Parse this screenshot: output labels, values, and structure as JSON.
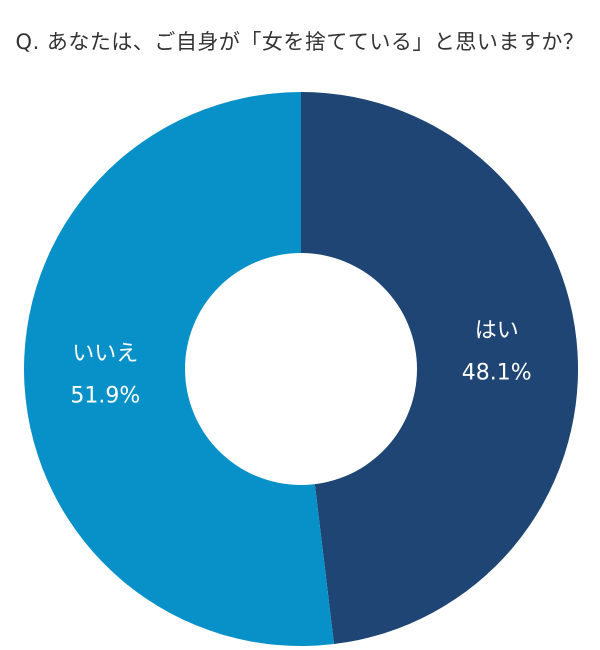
{
  "chart_data": {
    "type": "pie",
    "title": "Q. あなたは、ご自身が「女を捨てている」と思いますか？",
    "slices": [
      {
        "label": "はい",
        "value": 48.1,
        "value_label": "48.1%",
        "color": "#1e4573"
      },
      {
        "label": "いいえ",
        "value": 51.9,
        "value_label": "51.9%",
        "color": "#0891c8"
      }
    ],
    "donut": true,
    "start": "12 o'clock",
    "direction": "clockwise",
    "legend": "none"
  }
}
